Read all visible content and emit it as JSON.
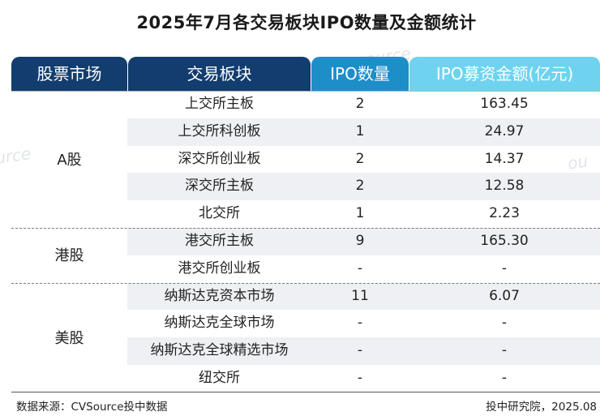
{
  "title": "2025年7月各交易板块IPO数量及金额统计",
  "headers": {
    "market": "股票市场",
    "board": "交易板块",
    "count": "IPO数量",
    "amount": "IPO募资金额(亿元)"
  },
  "markets": [
    {
      "name": "A股"
    },
    {
      "name": "港股"
    },
    {
      "name": "美股"
    }
  ],
  "rows": [
    {
      "board": "上交所主板",
      "count": "2",
      "amount": "163.45"
    },
    {
      "board": "上交所科创板",
      "count": "1",
      "amount": "24.97"
    },
    {
      "board": "深交所创业板",
      "count": "2",
      "amount": "14.37"
    },
    {
      "board": "深交所主板",
      "count": "2",
      "amount": "12.58"
    },
    {
      "board": "北交所",
      "count": "1",
      "amount": "2.23"
    },
    {
      "board": "港交所主板",
      "count": "9",
      "amount": "165.30"
    },
    {
      "board": "港交所创业板",
      "count": "-",
      "amount": "-"
    },
    {
      "board": "纳斯达克资本市场",
      "count": "11",
      "amount": "6.07"
    },
    {
      "board": "纳斯达克全球市场",
      "count": "-",
      "amount": "-"
    },
    {
      "board": "纳斯达克全球精选市场",
      "count": "-",
      "amount": "-"
    },
    {
      "board": "纽交所",
      "count": "-",
      "amount": "-"
    }
  ],
  "footer": {
    "source": "数据来源：CVSource投中数据",
    "credit": "投中研究院，2025.08"
  },
  "watermark": {
    "text_1": "source",
    "text_2": "urce",
    "text_3": "ou"
  },
  "colors": {
    "header_dark": "#123d6e",
    "header_mid": "#1e8ec9",
    "header_light": "#6fd3ef",
    "row_shade": "#eef0f3"
  }
}
